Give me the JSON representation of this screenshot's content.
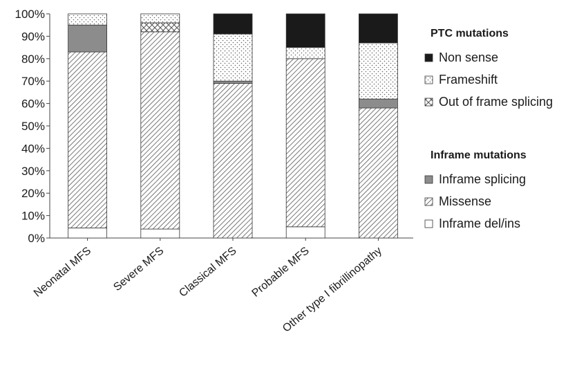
{
  "chart_data": {
    "type": "bar",
    "stacked": true,
    "categories": [
      "Neonatal MFS",
      "Severe MFS",
      "Classical MFS",
      "Probable MFS",
      "Other type I fibrillinopathy"
    ],
    "ylim": [
      0,
      100
    ],
    "yticks": [
      "0%",
      "10%",
      "20%",
      "30%",
      "40%",
      "50%",
      "60%",
      "70%",
      "80%",
      "90%",
      "100%"
    ],
    "legend_groups": [
      {
        "title": "PTC mutations",
        "items": [
          "Non sense",
          "Frameshift",
          "Out of frame splicing"
        ]
      },
      {
        "title": "Inframe mutations",
        "items": [
          "Inframe splicing",
          "Missense",
          "Inframe del/ins"
        ]
      }
    ],
    "series": [
      {
        "name": "Inframe del/ins",
        "pattern": "white",
        "values": [
          4.5,
          4,
          0,
          5,
          0
        ]
      },
      {
        "name": "Missense",
        "pattern": "diagonal",
        "values": [
          78.5,
          88,
          69,
          75,
          58
        ]
      },
      {
        "name": "Inframe splicing",
        "pattern": "gray",
        "values": [
          12,
          0,
          1,
          0,
          4
        ]
      },
      {
        "name": "Out of frame splicing",
        "pattern": "cross",
        "values": [
          0,
          4,
          0,
          0,
          0
        ]
      },
      {
        "name": "Frameshift",
        "pattern": "dots",
        "values": [
          5,
          4,
          21,
          5,
          25
        ]
      },
      {
        "name": "Non sense",
        "pattern": "black",
        "values": [
          0,
          0,
          9,
          15,
          13
        ]
      }
    ],
    "grid": false,
    "legend_position": "right"
  }
}
